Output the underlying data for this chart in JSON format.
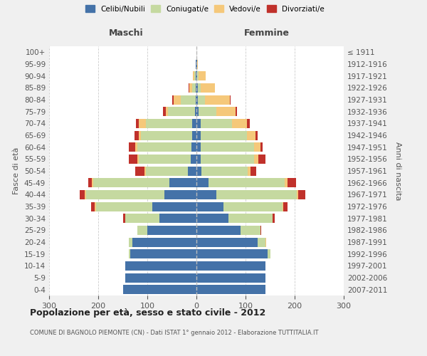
{
  "age_groups": [
    "0-4",
    "5-9",
    "10-14",
    "15-19",
    "20-24",
    "25-29",
    "30-34",
    "35-39",
    "40-44",
    "45-49",
    "50-54",
    "55-59",
    "60-64",
    "65-69",
    "70-74",
    "75-79",
    "80-84",
    "85-89",
    "90-94",
    "95-99",
    "100+"
  ],
  "birth_years": [
    "2007-2011",
    "2002-2006",
    "1997-2001",
    "1992-1996",
    "1987-1991",
    "1982-1986",
    "1977-1981",
    "1972-1976",
    "1967-1971",
    "1962-1966",
    "1957-1961",
    "1952-1956",
    "1947-1951",
    "1942-1946",
    "1937-1941",
    "1932-1936",
    "1927-1931",
    "1922-1926",
    "1917-1921",
    "1912-1916",
    "≤ 1911"
  ],
  "males": {
    "celibi": [
      150,
      145,
      145,
      135,
      130,
      100,
      75,
      90,
      65,
      55,
      18,
      12,
      10,
      8,
      8,
      3,
      2,
      1,
      1,
      1,
      0
    ],
    "coniugati": [
      0,
      0,
      0,
      2,
      8,
      20,
      70,
      115,
      160,
      155,
      85,
      105,
      110,
      105,
      95,
      55,
      30,
      8,
      3,
      0,
      0
    ],
    "vedovi": [
      0,
      0,
      0,
      0,
      0,
      0,
      0,
      2,
      2,
      3,
      3,
      3,
      5,
      5,
      15,
      5,
      15,
      5,
      3,
      0,
      0
    ],
    "divorziati": [
      0,
      0,
      0,
      0,
      0,
      0,
      5,
      8,
      10,
      8,
      18,
      18,
      12,
      8,
      5,
      5,
      2,
      2,
      0,
      0,
      0
    ]
  },
  "females": {
    "nubili": [
      140,
      140,
      140,
      145,
      125,
      90,
      65,
      55,
      40,
      25,
      10,
      8,
      8,
      8,
      8,
      5,
      3,
      3,
      2,
      1,
      0
    ],
    "coniugate": [
      0,
      0,
      0,
      5,
      15,
      40,
      90,
      120,
      165,
      155,
      95,
      110,
      110,
      95,
      65,
      35,
      15,
      5,
      2,
      0,
      0
    ],
    "vedove": [
      0,
      0,
      0,
      0,
      2,
      0,
      0,
      2,
      2,
      5,
      5,
      8,
      12,
      18,
      30,
      40,
      50,
      30,
      15,
      2,
      0
    ],
    "divorziate": [
      0,
      0,
      0,
      0,
      0,
      2,
      5,
      8,
      15,
      18,
      12,
      15,
      5,
      3,
      5,
      2,
      2,
      0,
      0,
      0,
      0
    ]
  },
  "colors": {
    "celibi": "#4472a8",
    "coniugati": "#c5d9a0",
    "vedovi": "#f5c87a",
    "divorziati": "#c0312b"
  },
  "title1": "Popolazione per età, sesso e stato civile - 2012",
  "title2": "COMUNE DI BAGNOLO PIEMONTE (CN) - Dati ISTAT 1° gennaio 2012 - Elaborazione TUTTITALIA.IT",
  "xlabel_left": "Maschi",
  "xlabel_right": "Femmine",
  "ylabel_left": "Fasce di età",
  "ylabel_right": "Anni di nascita",
  "xlim": 300,
  "background_color": "#f0f0f0",
  "plot_bg": "#ffffff",
  "legend_labels": [
    "Celibi/Nubili",
    "Coniugati/e",
    "Vedovi/e",
    "Divorziati/e"
  ]
}
